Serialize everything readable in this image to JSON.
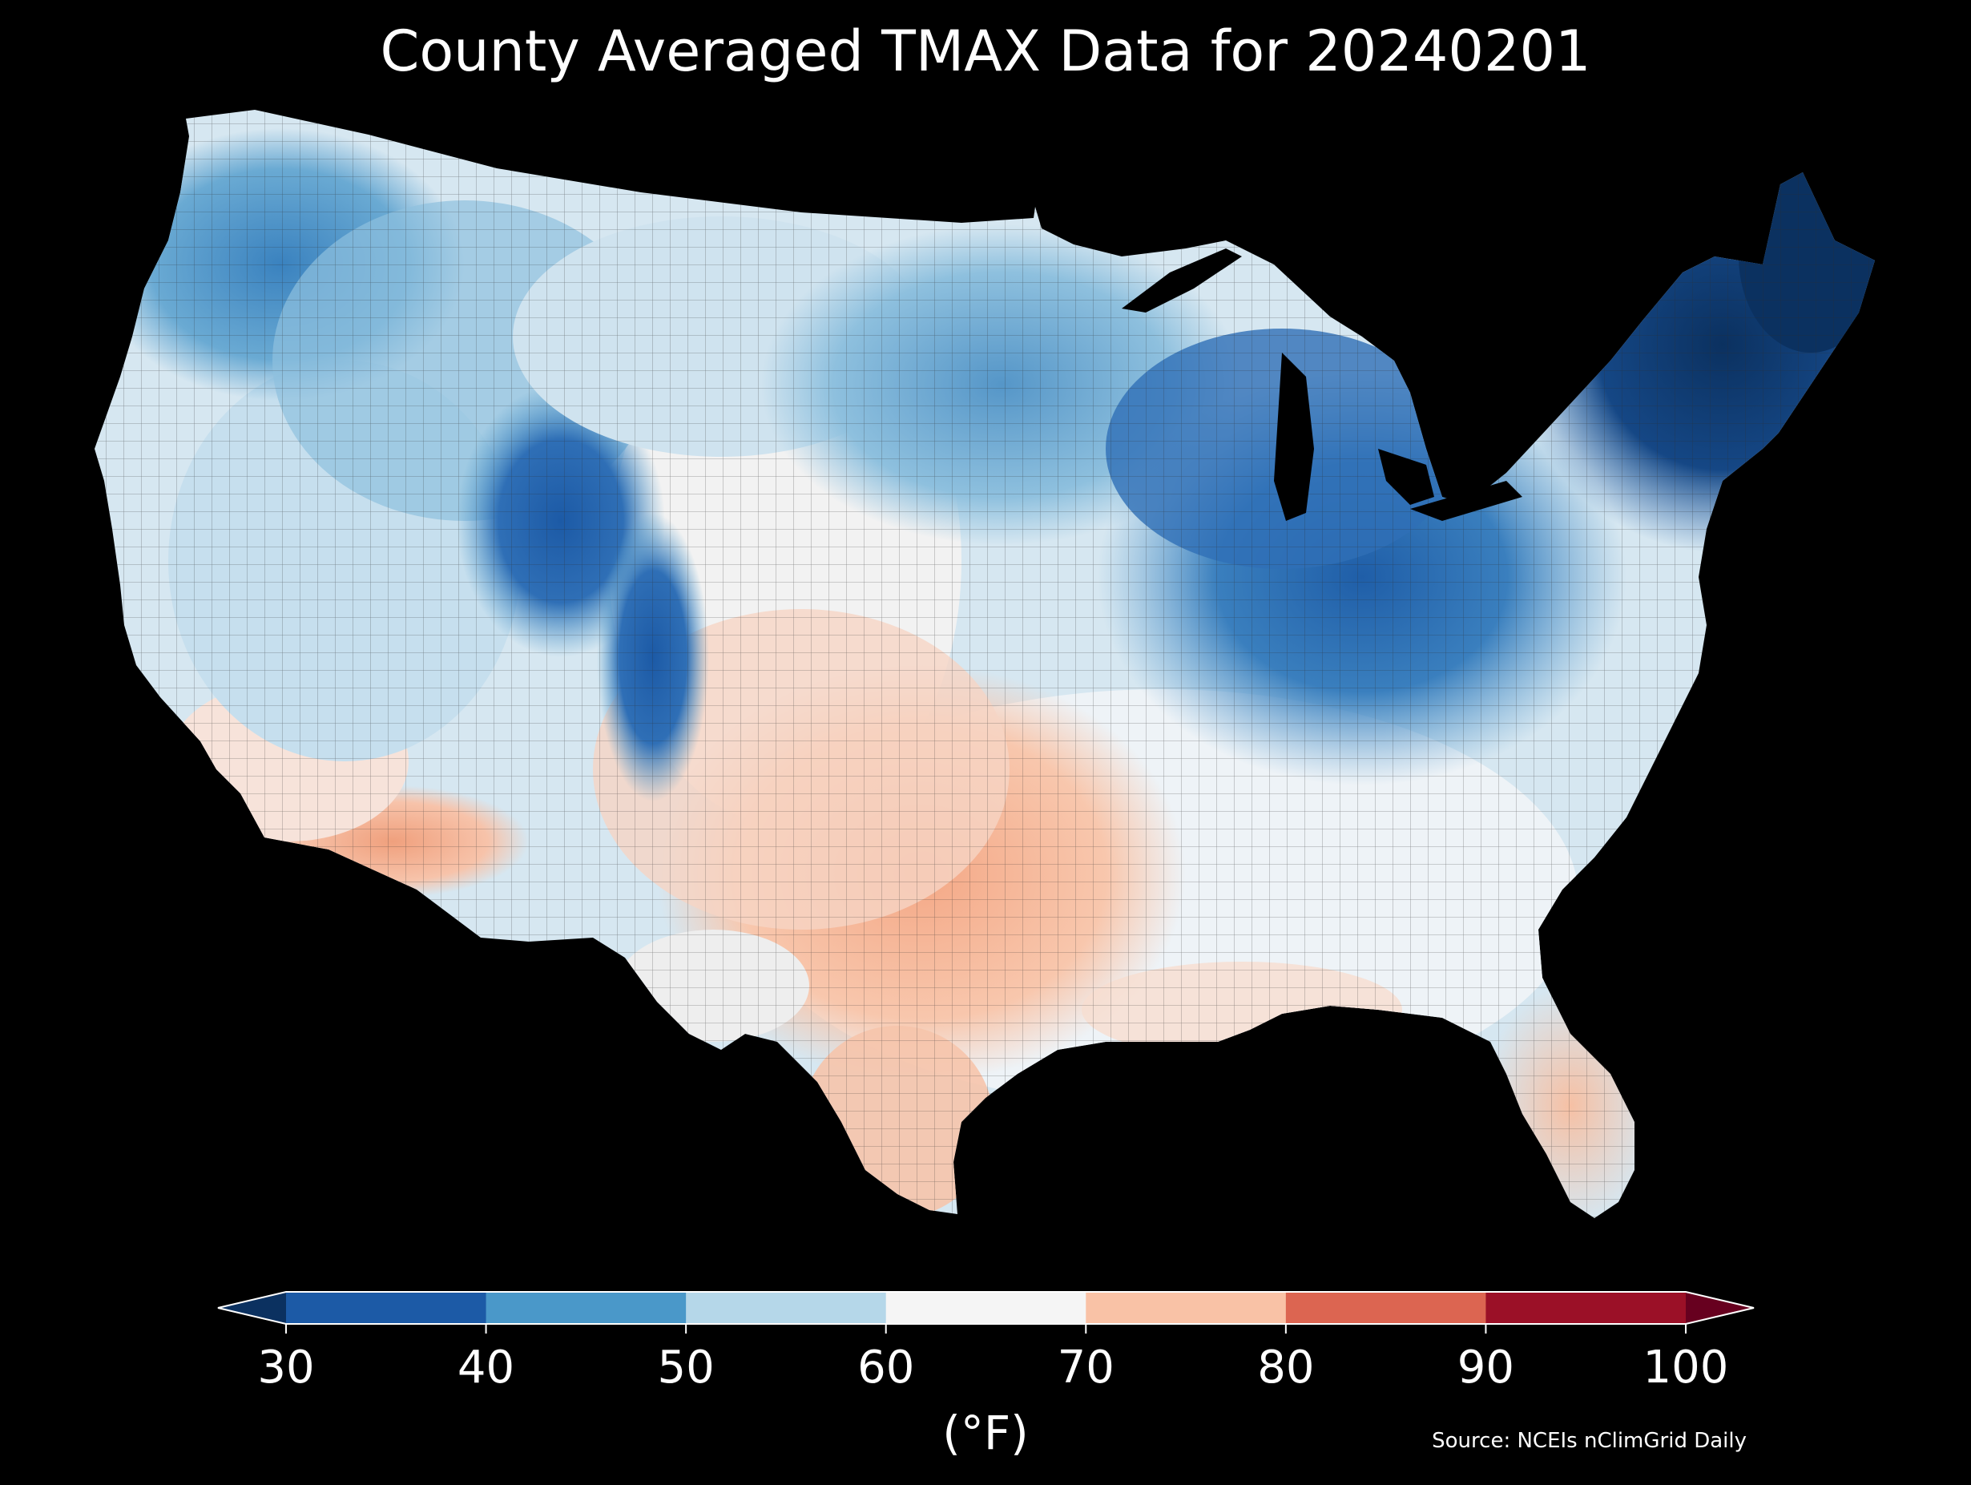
{
  "title": "County Averaged TMAX Data for 20240201",
  "colorbar": {
    "units": "(°F)",
    "ticks": [
      "30",
      "40",
      "50",
      "60",
      "70",
      "80",
      "90",
      "100"
    ],
    "bins": [
      {
        "from": 30,
        "to": 40,
        "color": "#1c5aa6"
      },
      {
        "from": 40,
        "to": 50,
        "color": "#4a98c9"
      },
      {
        "from": 50,
        "to": 60,
        "color": "#b5d7e9"
      },
      {
        "from": 60,
        "to": 70,
        "color": "#f5f5f5"
      },
      {
        "from": 70,
        "to": 80,
        "color": "#f9c2a6"
      },
      {
        "from": 80,
        "to": 90,
        "color": "#dc6551"
      },
      {
        "from": 90,
        "to": 100,
        "color": "#9b1027"
      }
    ],
    "extend_low_color": "#0b3160",
    "extend_high_color": "#67001f"
  },
  "source": "Source: NCEIs nClimGrid Daily",
  "map": {
    "region": "Contiguous United States",
    "background": "#000000",
    "regions": [
      {
        "id": "pacific-northwest",
        "tmax_range": "40-50",
        "color": "#5c9fcf"
      },
      {
        "id": "great-basin",
        "tmax_range": "50-60",
        "color": "#b5d7e9"
      },
      {
        "id": "rocky-mountains",
        "tmax_range": "30-40",
        "color": "#2a66ac"
      },
      {
        "id": "southwest",
        "tmax_range": "70-80",
        "color": "#f5b195"
      },
      {
        "id": "northern-plains",
        "tmax_range": "50-60",
        "color": "#c9e1ef"
      },
      {
        "id": "texas-southern-plains",
        "tmax_range": "70-80",
        "color": "#f8c7ad"
      },
      {
        "id": "upper-midwest",
        "tmax_range": "40-50",
        "color": "#6aaad3"
      },
      {
        "id": "ohio-valley-appalachians",
        "tmax_range": "30-40",
        "color": "#2c6fb6"
      },
      {
        "id": "northeast",
        "tmax_range": "30-40",
        "color": "#123f7a"
      },
      {
        "id": "southeast",
        "tmax_range": "60-70",
        "color": "#e6eff5"
      },
      {
        "id": "gulf-coast-florida",
        "tmax_range": "70-80",
        "color": "#f7d2bf"
      }
    ]
  }
}
